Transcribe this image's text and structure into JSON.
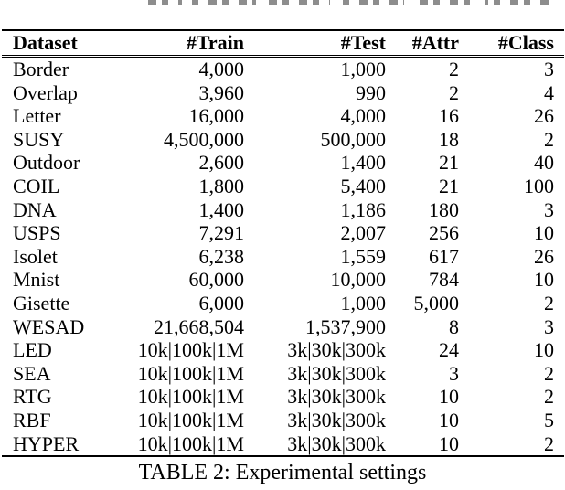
{
  "page": {
    "caption": "TABLE 2: Experimental settings"
  },
  "table": {
    "columns": [
      "Dataset",
      "#Train",
      "#Test",
      "#Attr",
      "#Class"
    ],
    "rows": [
      [
        "Border",
        "4,000",
        "1,000",
        "2",
        "3"
      ],
      [
        "Overlap",
        "3,960",
        "990",
        "2",
        "4"
      ],
      [
        "Letter",
        "16,000",
        "4,000",
        "16",
        "26"
      ],
      [
        "SUSY",
        "4,500,000",
        "500,000",
        "18",
        "2"
      ],
      [
        "Outdoor",
        "2,600",
        "1,400",
        "21",
        "40"
      ],
      [
        "COIL",
        "1,800",
        "5,400",
        "21",
        "100"
      ],
      [
        "DNA",
        "1,400",
        "1,186",
        "180",
        "3"
      ],
      [
        "USPS",
        "7,291",
        "2,007",
        "256",
        "10"
      ],
      [
        "Isolet",
        "6,238",
        "1,559",
        "617",
        "26"
      ],
      [
        "Mnist",
        "60,000",
        "10,000",
        "784",
        "10"
      ],
      [
        "Gisette",
        "6,000",
        "1,000",
        "5,000",
        "2"
      ],
      [
        "WESAD",
        "21,668,504",
        "1,537,900",
        "8",
        "3"
      ],
      [
        "LED",
        "10k|100k|1M",
        "3k|30k|300k",
        "24",
        "10"
      ],
      [
        "SEA",
        "10k|100k|1M",
        "3k|30k|300k",
        "3",
        "2"
      ],
      [
        "RTG",
        "10k|100k|1M",
        "3k|30k|300k",
        "10",
        "2"
      ],
      [
        "RBF",
        "10k|100k|1M",
        "3k|30k|300k",
        "10",
        "5"
      ],
      [
        "HYPER",
        "10k|100k|1M",
        "3k|30k|300k",
        "10",
        "2"
      ]
    ]
  }
}
